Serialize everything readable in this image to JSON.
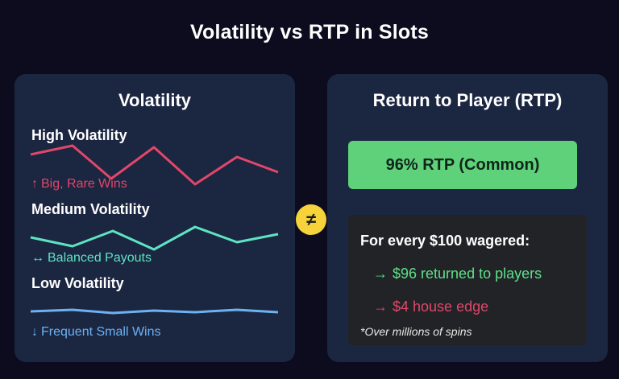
{
  "title": "Volatility vs RTP in Slots",
  "left_panel": {
    "title": "Volatility",
    "levels": [
      {
        "heading": "High Volatility",
        "arrow": "↑",
        "desc": "Big, Rare Wins",
        "color": "#e0476a"
      },
      {
        "heading": "Medium Volatility",
        "arrow": "↔",
        "desc": "Balanced Payouts",
        "color": "#5ee3c4"
      },
      {
        "heading": "Low Volatility",
        "arrow": "↓",
        "desc": "Frequent Small Wins",
        "color": "#6cb2f2"
      }
    ]
  },
  "not_equal_symbol": "≠",
  "right_panel": {
    "title": "Return to Player (RTP)",
    "rtp_label": "96% RTP (Common)",
    "explain_heading": "For every $100 wagered:",
    "items": [
      {
        "arrow": "→",
        "text": "$96 returned to players",
        "color": "#5ee08a"
      },
      {
        "arrow": "→",
        "text": "$4 house edge",
        "color": "#e0476a"
      }
    ],
    "note": "*Over millions of spins"
  },
  "colors": {
    "background": "#0c0c1e",
    "panel": "#1b2641",
    "rtp_box": "#5fd17b",
    "symbol_circle": "#f6d33b"
  }
}
